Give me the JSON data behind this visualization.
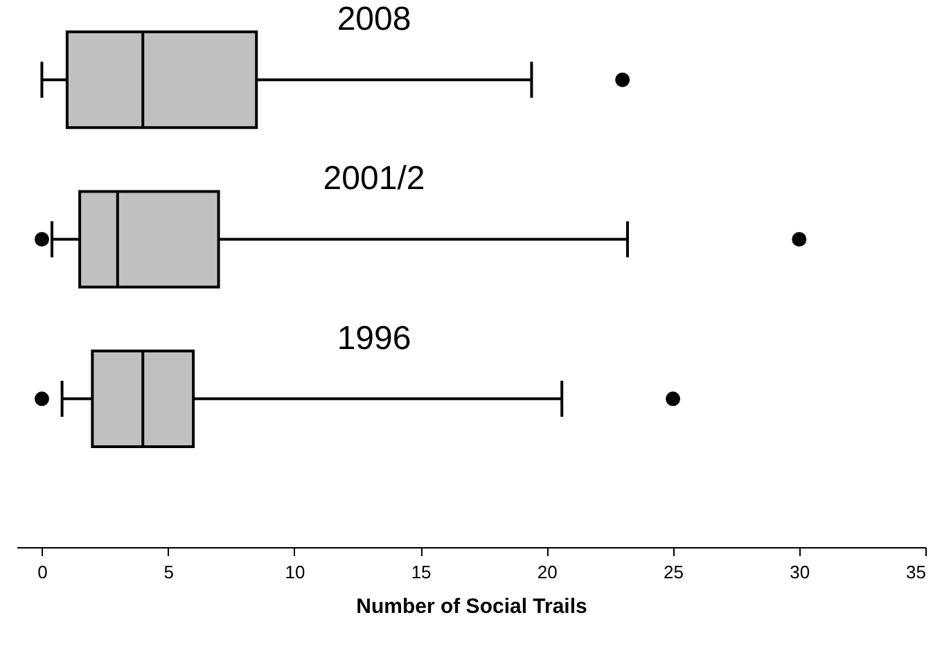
{
  "chart_data": {
    "type": "box",
    "orientation": "horizontal",
    "xlabel": "Number of Social Trails",
    "categories": [
      "2008",
      "2001/2",
      "1996"
    ],
    "boxes": [
      {
        "low": 0,
        "q1": 1,
        "median": 4,
        "q3": 8.5,
        "high": 19.4,
        "outliers": [
          23
        ]
      },
      {
        "low": 0.4,
        "q1": 1.5,
        "median": 3,
        "q3": 7,
        "high": 23.2,
        "outliers": [
          0,
          30
        ]
      },
      {
        "low": 0.8,
        "q1": 2,
        "median": 4,
        "q3": 6,
        "high": 20.6,
        "outliers": [
          0,
          25
        ]
      }
    ],
    "color": "#c0c0c0",
    "xlim": [
      -1,
      35
    ],
    "xticks": [
      0,
      5,
      10,
      15,
      20,
      25,
      30,
      35
    ],
    "grid": false
  }
}
